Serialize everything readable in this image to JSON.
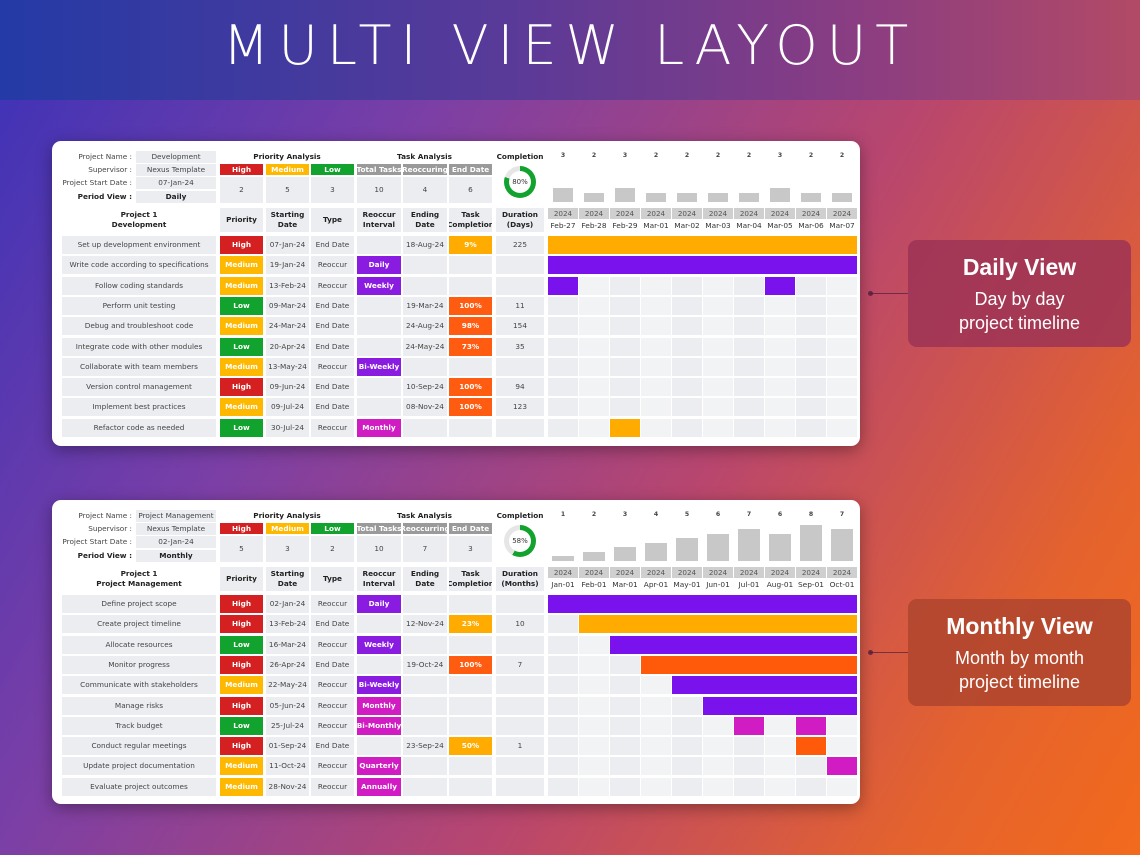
{
  "title": "MULTI VIEW LAYOUT",
  "colors": {
    "High": "#d42020",
    "Medium": "#ffb800",
    "Low": "#12a22e",
    "interval": "#8a1be0",
    "interval_m": "#d01cc2",
    "end_low": "#ffab00",
    "end_high": "#ff5c12",
    "bar_orange": "#ffab00",
    "bar_purple": "#7a12ee",
    "bar_red": "#ff5a0a",
    "bar_magenta": "#d01cc2",
    "donut": "#12a22e"
  },
  "labels": {
    "project_name": "Project Name :",
    "supervisor": "Supervisor :",
    "start_date": "Project Start Date :",
    "period_view": "Period View :",
    "priority_analysis": "Priority Analysis",
    "task_analysis": "Task Analysis",
    "completion": "Completion",
    "high": "High",
    "medium": "Medium",
    "low": "Low",
    "total_tasks": "Total Tasks",
    "reoccurring": "Reoccuring",
    "reoccurring2": "Reoccurring",
    "end_date": "End Date",
    "priority": "Priority",
    "starting": "Starting",
    "date": "Date",
    "type": "Type",
    "reoccur": "Reoccur",
    "interval": "Interval",
    "ending": "Ending",
    "task": "Task",
    "task_completion": "Completion",
    "duration": "Duration",
    "days": "(Days)",
    "months": "(Months)"
  },
  "daily": {
    "project_name": "Development",
    "supervisor": "Nexus Template",
    "start_date": "07-Jan-24",
    "period": "Daily",
    "priority_counts": {
      "high": "2",
      "medium": "5",
      "low": "3"
    },
    "task_counts": {
      "total": "10",
      "reoccur": "4",
      "end": "6"
    },
    "completion": "80%",
    "completion_value": 0.8,
    "project_label": "Project 1",
    "project_sub": "Development",
    "hist_counts": [
      "3",
      "2",
      "3",
      "2",
      "2",
      "2",
      "2",
      "3",
      "2",
      "2"
    ],
    "years": [
      "2024",
      "2024",
      "2024",
      "2024",
      "2024",
      "2024",
      "2024",
      "2024",
      "2024",
      "2024"
    ],
    "dates": [
      "Feb-27",
      "Feb-28",
      "Feb-29",
      "Mar-01",
      "Mar-02",
      "Mar-03",
      "Mar-04",
      "Mar-05",
      "Mar-06",
      "Mar-07"
    ],
    "tasks": [
      {
        "name": "Set up development environment",
        "priority": "High",
        "start": "07-Jan-24",
        "type": "End Date",
        "interval": "",
        "end": "18-Aug-24",
        "completion": "9%",
        "duration": "225"
      },
      {
        "name": "Write code according to specifications",
        "priority": "Medium",
        "start": "19-Jan-24",
        "type": "Reoccur",
        "interval": "Daily",
        "end": "",
        "completion": "",
        "duration": ""
      },
      {
        "name": "Follow coding standards",
        "priority": "Medium",
        "start": "13-Feb-24",
        "type": "Reoccur",
        "interval": "Weekly",
        "end": "",
        "completion": "",
        "duration": ""
      },
      {
        "name": "Perform unit testing",
        "priority": "Low",
        "start": "09-Mar-24",
        "type": "End Date",
        "interval": "",
        "end": "19-Mar-24",
        "completion": "100%",
        "duration": "11"
      },
      {
        "name": "Debug and troubleshoot code",
        "priority": "Medium",
        "start": "24-Mar-24",
        "type": "End Date",
        "interval": "",
        "end": "24-Aug-24",
        "completion": "98%",
        "duration": "154"
      },
      {
        "name": "Integrate code with other modules",
        "priority": "Low",
        "start": "20-Apr-24",
        "type": "End Date",
        "interval": "",
        "end": "24-May-24",
        "completion": "73%",
        "duration": "35"
      },
      {
        "name": "Collaborate with team members",
        "priority": "Medium",
        "start": "13-May-24",
        "type": "Reoccur",
        "interval": "Bi-Weekly",
        "end": "",
        "completion": "",
        "duration": ""
      },
      {
        "name": "Version control management",
        "priority": "High",
        "start": "09-Jun-24",
        "type": "End Date",
        "interval": "",
        "end": "10-Sep-24",
        "completion": "100%",
        "duration": "94"
      },
      {
        "name": "Implement best practices",
        "priority": "Medium",
        "start": "09-Jul-24",
        "type": "End Date",
        "interval": "",
        "end": "08-Nov-24",
        "completion": "100%",
        "duration": "123"
      },
      {
        "name": "Refactor code as needed",
        "priority": "Low",
        "start": "30-Jul-24",
        "type": "Reoccur",
        "interval": "Monthly",
        "end": "",
        "completion": "",
        "duration": ""
      }
    ]
  },
  "monthly": {
    "project_name": "Project Management",
    "supervisor": "Nexus Template",
    "start_date": "02-Jan-24",
    "period": "Monthly",
    "priority_counts": {
      "high": "5",
      "medium": "3",
      "low": "2"
    },
    "task_counts": {
      "total": "10",
      "reoccur": "7",
      "end": "3"
    },
    "completion": "58%",
    "completion_value": 0.58,
    "project_label": "Project 1",
    "project_sub": "Project Management",
    "hist_counts": [
      "1",
      "2",
      "3",
      "4",
      "5",
      "6",
      "7",
      "6",
      "8",
      "7"
    ],
    "years": [
      "2024",
      "2024",
      "2024",
      "2024",
      "2024",
      "2024",
      "2024",
      "2024",
      "2024",
      "2024"
    ],
    "dates": [
      "Jan-01",
      "Feb-01",
      "Mar-01",
      "Apr-01",
      "May-01",
      "Jun-01",
      "Jul-01",
      "Aug-01",
      "Sep-01",
      "Oct-01"
    ],
    "tasks": [
      {
        "name": "Define project scope",
        "priority": "High",
        "start": "02-Jan-24",
        "type": "Reoccur",
        "interval": "Daily",
        "end": "",
        "completion": "",
        "duration": ""
      },
      {
        "name": "Create project timeline",
        "priority": "High",
        "start": "13-Feb-24",
        "type": "End Date",
        "interval": "",
        "end": "12-Nov-24",
        "completion": "23%",
        "duration": "10"
      },
      {
        "name": "Allocate resources",
        "priority": "Low",
        "start": "16-Mar-24",
        "type": "Reoccur",
        "interval": "Weekly",
        "end": "",
        "completion": "",
        "duration": ""
      },
      {
        "name": "Monitor progress",
        "priority": "High",
        "start": "26-Apr-24",
        "type": "End Date",
        "interval": "",
        "end": "19-Oct-24",
        "completion": "100%",
        "duration": "7"
      },
      {
        "name": "Communicate with stakeholders",
        "priority": "Medium",
        "start": "22-May-24",
        "type": "Reoccur",
        "interval": "Bi-Weekly",
        "end": "",
        "completion": "",
        "duration": ""
      },
      {
        "name": "Manage risks",
        "priority": "High",
        "start": "05-Jun-24",
        "type": "Reoccur",
        "interval": "Monthly",
        "end": "",
        "completion": "",
        "duration": ""
      },
      {
        "name": "Track budget",
        "priority": "Low",
        "start": "25-Jul-24",
        "type": "Reoccur",
        "interval": "Bi-Monthly",
        "end": "",
        "completion": "",
        "duration": ""
      },
      {
        "name": "Conduct regular meetings",
        "priority": "High",
        "start": "01-Sep-24",
        "type": "End Date",
        "interval": "",
        "end": "23-Sep-24",
        "completion": "50%",
        "duration": "1"
      },
      {
        "name": "Update project documentation",
        "priority": "Medium",
        "start": "11-Oct-24",
        "type": "Reoccur",
        "interval": "Quarterly",
        "end": "",
        "completion": "",
        "duration": ""
      },
      {
        "name": "Evaluate project outcomes",
        "priority": "Medium",
        "start": "28-Nov-24",
        "type": "Reoccur",
        "interval": "Annually",
        "end": "",
        "completion": "",
        "duration": ""
      }
    ]
  },
  "callouts": [
    {
      "title": "Daily View",
      "desc1": "Day by day",
      "desc2": "project timeline"
    },
    {
      "title": "Monthly View",
      "desc1": "Month by month",
      "desc2": "project timeline"
    }
  ],
  "gantt_daily": [
    [
      {
        "c": 0,
        "n": 10,
        "col": "bar_orange"
      }
    ],
    [
      {
        "c": 0,
        "n": 10,
        "col": "bar_purple"
      }
    ],
    [
      {
        "c": 0,
        "n": 1,
        "col": "bar_purple"
      },
      {
        "c": 7,
        "n": 1,
        "col": "bar_purple"
      }
    ],
    [],
    [],
    [],
    [],
    [],
    [],
    [
      {
        "c": 2,
        "n": 1,
        "col": "bar_orange"
      }
    ]
  ],
  "gantt_monthly": [
    [
      {
        "c": 0,
        "n": 10,
        "col": "bar_purple"
      }
    ],
    [
      {
        "c": 1,
        "n": 9,
        "col": "bar_orange"
      }
    ],
    [
      {
        "c": 2,
        "n": 8,
        "col": "bar_purple"
      }
    ],
    [
      {
        "c": 3,
        "n": 7,
        "col": "bar_red"
      }
    ],
    [
      {
        "c": 4,
        "n": 6,
        "col": "bar_purple"
      }
    ],
    [
      {
        "c": 5,
        "n": 5,
        "col": "bar_purple"
      }
    ],
    [
      {
        "c": 6,
        "n": 1,
        "col": "bar_magenta"
      },
      {
        "c": 8,
        "n": 1,
        "col": "bar_magenta"
      }
    ],
    [
      {
        "c": 8,
        "n": 1,
        "col": "bar_red"
      }
    ],
    [
      {
        "c": 9,
        "n": 1,
        "col": "bar_magenta"
      }
    ],
    []
  ]
}
